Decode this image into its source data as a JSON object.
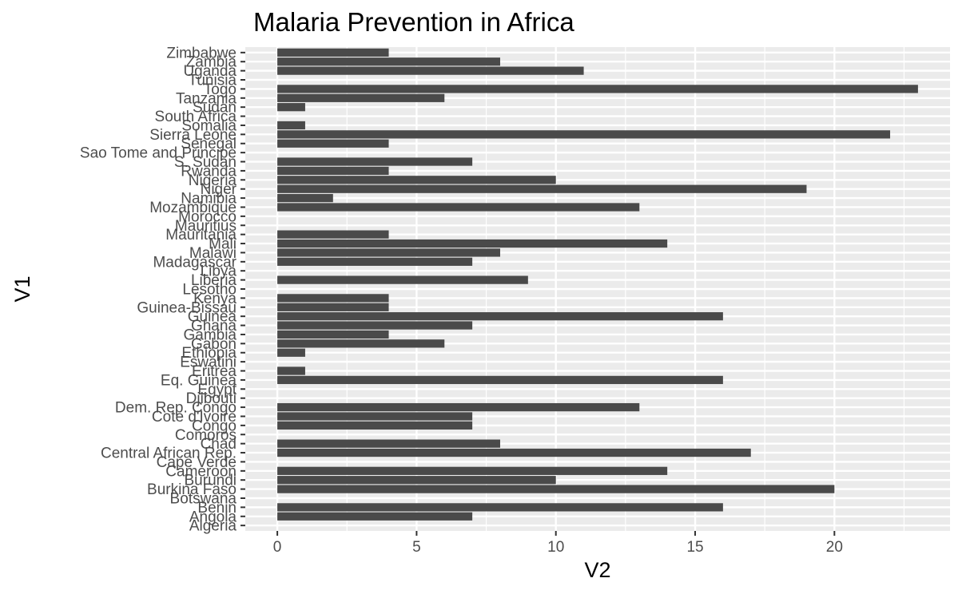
{
  "chart_data": {
    "type": "bar",
    "orientation": "horizontal",
    "title": "Malaria Prevention in Africa",
    "xlabel": "V2",
    "ylabel": "V1",
    "xlim": [
      -1.15,
      24.15
    ],
    "xticks": [
      "0",
      "5",
      "10",
      "15",
      "20"
    ],
    "grid": true,
    "bar_color": "#4a4a4a",
    "panel_color": "#ebebeb",
    "categories": [
      "Algeria",
      "Angola",
      "Benin",
      "Botswana",
      "Burkina Faso",
      "Burundi",
      "Cameroon",
      "Cape Verde",
      "Central African Rep.",
      "Chad",
      "Comoros",
      "Congo",
      "Cote d'Ivoire",
      "Dem. Rep. Congo",
      "Djibouti",
      "Egypt",
      "Eq. Guinea",
      "Eritrea",
      "Eswatini",
      "Ethiopia",
      "Gabon",
      "Gambia",
      "Ghana",
      "Guinea",
      "Guinea-Bissau",
      "Kenya",
      "Lesotho",
      "Liberia",
      "Libya",
      "Madagascar",
      "Malawi",
      "Mali",
      "Mauritania",
      "Mauritius",
      "Morocco",
      "Mozambique",
      "Namibia",
      "Niger",
      "Nigeria",
      "Rwanda",
      "S. Sudan",
      "Sao Tome and Principe",
      "Senegal",
      "Sierra Leone",
      "Somalia",
      "South Africa",
      "Sudan",
      "Tanzania",
      "Togo",
      "Tunisia",
      "Uganda",
      "Zambia",
      "Zimbabwe"
    ],
    "values": [
      0,
      7,
      16,
      0,
      20,
      10,
      14,
      0,
      17,
      8,
      0,
      7,
      7,
      13,
      0,
      0,
      16,
      1,
      0,
      1,
      6,
      4,
      7,
      16,
      4,
      4,
      0,
      9,
      0,
      7,
      8,
      14,
      4,
      0,
      0,
      13,
      2,
      19,
      10,
      4,
      7,
      0,
      4,
      22,
      1,
      0,
      1,
      6,
      23,
      0,
      11,
      8,
      4
    ]
  }
}
